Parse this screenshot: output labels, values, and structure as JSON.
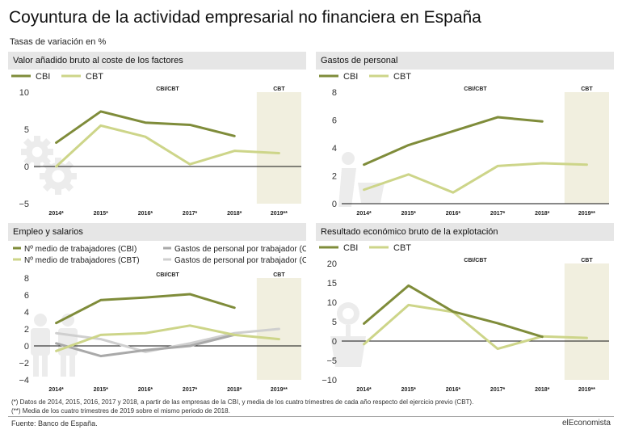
{
  "header": {
    "title": "Coyuntura de la actividad empresarial no financiera en España",
    "subtitle": "Tasas de variación en %"
  },
  "colors": {
    "cbi": "#7f8c3a",
    "cbt": "#cdd589",
    "gp_cbi": "#a9a9a9",
    "gp_cbt": "#cfcfcf",
    "shade": "#f1efdf",
    "header_bg": "#e6e6e6"
  },
  "icons": [
    "gears-icon",
    "person-with-cart-icon",
    "people-icon",
    "money-plant-icon"
  ],
  "footnotes": {
    "note1": "(*) Datos de 2014, 2015, 2016, 2017 y 2018, a partir de las empresas de la CBI, y media de los cuatro trimestres de cada año respecto del ejercicio previo (CBT).",
    "note2": "(**) Media de los cuatro trimestres de 2019 sobre el mismo periodo de 2018.",
    "source": "Fuente: Banco de España.",
    "brand": "elEconomista"
  },
  "chart_data": [
    {
      "type": "line",
      "title": "Valor añadido bruto al coste de los factores",
      "categories": [
        "2014*",
        "2015*",
        "2016*",
        "2017*",
        "2018*",
        "2019**"
      ],
      "series": [
        {
          "name": "CBI",
          "values": [
            3.2,
            7.4,
            5.9,
            5.6,
            4.1,
            null
          ]
        },
        {
          "name": "CBT",
          "values": [
            0.0,
            5.5,
            4.0,
            0.3,
            2.1,
            1.8
          ]
        }
      ],
      "ylim": [
        -5,
        10
      ],
      "yticks": [
        -5,
        0,
        5,
        10
      ],
      "top_labels": [
        "CBI/CBT",
        "CBT"
      ]
    },
    {
      "type": "line",
      "title": "Gastos de personal",
      "categories": [
        "2014*",
        "2015*",
        "2016*",
        "2017*",
        "2018*",
        "2019**"
      ],
      "series": [
        {
          "name": "CBI",
          "values": [
            2.8,
            4.2,
            5.2,
            6.2,
            5.9,
            null
          ]
        },
        {
          "name": "CBT",
          "values": [
            1.0,
            2.1,
            0.8,
            2.7,
            2.9,
            2.8
          ]
        }
      ],
      "ylim": [
        0,
        8
      ],
      "yticks": [
        0,
        2,
        4,
        6,
        8
      ],
      "top_labels": [
        "CBI/CBT",
        "CBT"
      ]
    },
    {
      "type": "line",
      "title": "Empleo y salarios",
      "categories": [
        "2014*",
        "2015*",
        "2016*",
        "2017*",
        "2018*",
        "2019**"
      ],
      "series": [
        {
          "name": "Nº medio de trabajadores (CBI)",
          "values": [
            2.7,
            5.4,
            5.7,
            6.1,
            4.5,
            null
          ]
        },
        {
          "name": "Nº medio de trabajadores (CBT)",
          "values": [
            -0.6,
            1.3,
            1.5,
            2.4,
            1.3,
            0.8
          ]
        },
        {
          "name": "Gastos de personal por trabajador (CBI)",
          "values": [
            0.3,
            -1.2,
            -0.5,
            0.0,
            1.3,
            null
          ]
        },
        {
          "name": "Gastos de personal por trabajador (CBT)",
          "values": [
            1.5,
            0.8,
            -0.7,
            0.3,
            1.5,
            2.0
          ]
        }
      ],
      "ylim": [
        -4,
        8
      ],
      "yticks": [
        -4,
        -2,
        0,
        2,
        4,
        6,
        8
      ],
      "top_labels": [
        "CBI/CBT",
        "CBT"
      ]
    },
    {
      "type": "line",
      "title": "Resultado económico bruto de la explotación",
      "categories": [
        "2014*",
        "2015*",
        "2016*",
        "2017*",
        "2018*",
        "2019**"
      ],
      "series": [
        {
          "name": "CBI",
          "values": [
            4.5,
            14.3,
            7.6,
            4.6,
            1.1,
            null
          ]
        },
        {
          "name": "CBT",
          "values": [
            -0.8,
            9.3,
            7.5,
            -2.0,
            1.2,
            0.8
          ]
        }
      ],
      "ylim": [
        -10,
        20
      ],
      "yticks": [
        -10,
        -5,
        0,
        5,
        10,
        15,
        20
      ],
      "top_labels": [
        "CBI/CBT",
        "CBT"
      ]
    }
  ]
}
